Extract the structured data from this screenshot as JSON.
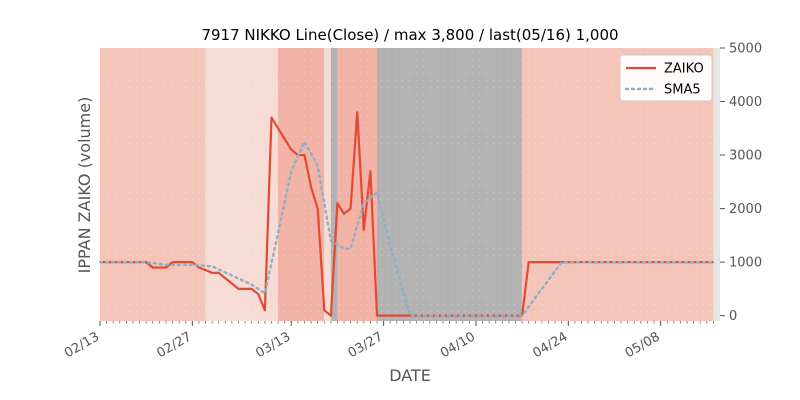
{
  "chart_data": {
    "type": "line",
    "title": "7917 NIKKO Line(Close) / max 3,800 / last(05/16) 1,000",
    "xlabel": "DATE",
    "ylabel": "IPPAN ZAIKO (volume)",
    "y_axis_side": "right",
    "ylim": [
      -100,
      5000
    ],
    "yticks": [
      0,
      1000,
      2000,
      3000,
      4000,
      5000
    ],
    "xlim": [
      "2024-02-13",
      "2024-05-17"
    ],
    "xticks": [
      "02/13",
      "02/27",
      "03/13",
      "03/27",
      "04/10",
      "04/24",
      "05/08"
    ],
    "xtick_dates": [
      "2024-02-13",
      "2024-02-27",
      "2024-03-13",
      "2024-03-27",
      "2024-04-10",
      "2024-04-24",
      "2024-05-08"
    ],
    "grid": false,
    "legend_position": "top-right",
    "background_bands": [
      {
        "start": "2024-02-13",
        "end": "2024-02-29",
        "color": "#f4c4b9"
      },
      {
        "start": "2024-02-29",
        "end": "2024-03-11",
        "color": "#f6dcd4"
      },
      {
        "start": "2024-03-11",
        "end": "2024-03-18",
        "color": "#f2b2a5"
      },
      {
        "start": "2024-03-18",
        "end": "2024-03-19",
        "color": "#f6dcd4"
      },
      {
        "start": "2024-03-19",
        "end": "2024-03-20",
        "color": "#b2b2b2"
      },
      {
        "start": "2024-03-20",
        "end": "2024-03-26",
        "color": "#f2b2a5"
      },
      {
        "start": "2024-03-26",
        "end": "2024-04-17",
        "color": "#b2b2b2"
      },
      {
        "start": "2024-04-17",
        "end": "2024-05-16",
        "color": "#f4c4b9"
      }
    ],
    "series": [
      {
        "name": "ZAIKO",
        "color": "#e24a33",
        "style": "solid",
        "points": [
          [
            "2024-02-13",
            1000
          ],
          [
            "2024-02-14",
            1000
          ],
          [
            "2024-02-15",
            1000
          ],
          [
            "2024-02-16",
            1000
          ],
          [
            "2024-02-19",
            1000
          ],
          [
            "2024-02-20",
            1000
          ],
          [
            "2024-02-21",
            900
          ],
          [
            "2024-02-22",
            900
          ],
          [
            "2024-02-23",
            900
          ],
          [
            "2024-02-24",
            1000
          ],
          [
            "2024-02-26",
            1000
          ],
          [
            "2024-02-27",
            1000
          ],
          [
            "2024-02-28",
            900
          ],
          [
            "2024-02-29",
            850
          ],
          [
            "2024-03-01",
            800
          ],
          [
            "2024-03-02",
            800
          ],
          [
            "2024-03-04",
            600
          ],
          [
            "2024-03-05",
            500
          ],
          [
            "2024-03-06",
            500
          ],
          [
            "2024-03-07",
            500
          ],
          [
            "2024-03-08",
            400
          ],
          [
            "2024-03-09",
            100
          ],
          [
            "2024-03-10",
            3700
          ],
          [
            "2024-03-11",
            3500
          ],
          [
            "2024-03-12",
            3300
          ],
          [
            "2024-03-13",
            3100
          ],
          [
            "2024-03-14",
            3000
          ],
          [
            "2024-03-15",
            3000
          ],
          [
            "2024-03-16",
            2400
          ],
          [
            "2024-03-17",
            2000
          ],
          [
            "2024-03-18",
            100
          ],
          [
            "2024-03-19",
            0
          ],
          [
            "2024-03-20",
            2100
          ],
          [
            "2024-03-21",
            1900
          ],
          [
            "2024-03-22",
            2000
          ],
          [
            "2024-03-23",
            3800
          ],
          [
            "2024-03-24",
            1600
          ],
          [
            "2024-03-25",
            2700
          ],
          [
            "2024-03-26",
            0
          ],
          [
            "2024-04-17",
            0
          ],
          [
            "2024-04-18",
            1000
          ],
          [
            "2024-05-16",
            1000
          ]
        ]
      },
      {
        "name": "SMA5",
        "color": "#8eafc6",
        "style": "dotted",
        "points": [
          [
            "2024-02-13",
            1000
          ],
          [
            "2024-02-20",
            1000
          ],
          [
            "2024-02-23",
            950
          ],
          [
            "2024-02-27",
            950
          ],
          [
            "2024-03-01",
            920
          ],
          [
            "2024-03-04",
            750
          ],
          [
            "2024-03-07",
            580
          ],
          [
            "2024-03-09",
            420
          ],
          [
            "2024-03-11",
            1550
          ],
          [
            "2024-03-13",
            2700
          ],
          [
            "2024-03-15",
            3250
          ],
          [
            "2024-03-17",
            2800
          ],
          [
            "2024-03-19",
            1400
          ],
          [
            "2024-03-21",
            1250
          ],
          [
            "2024-03-22",
            1250
          ],
          [
            "2024-03-24",
            2100
          ],
          [
            "2024-03-26",
            2300
          ],
          [
            "2024-03-28",
            1300
          ],
          [
            "2024-03-31",
            0
          ],
          [
            "2024-04-17",
            0
          ],
          [
            "2024-04-23",
            1000
          ],
          [
            "2024-05-16",
            1000
          ]
        ]
      }
    ]
  }
}
